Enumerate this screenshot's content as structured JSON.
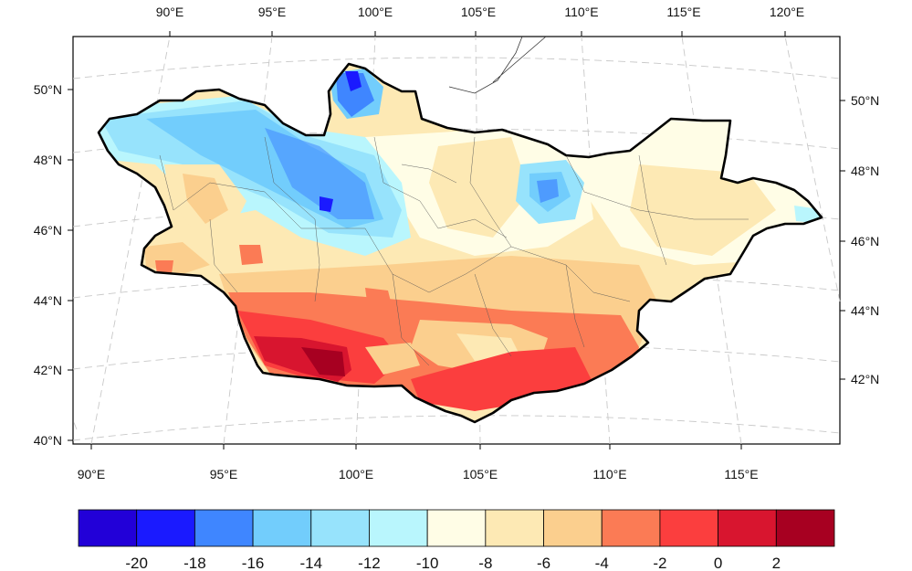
{
  "map": {
    "top_lon_labels": [
      "90°E",
      "95°E",
      "100°E",
      "105°E",
      "110°E",
      "115°E",
      "120°E"
    ],
    "bottom_lon_labels": [
      "90°E",
      "95°E",
      "100°E",
      "105°E",
      "110°E",
      "115°E"
    ],
    "left_lat_labels": [
      "50°N",
      "48°N",
      "46°N",
      "44°N",
      "42°N",
      "40°N"
    ],
    "right_lat_labels": [
      "50°N",
      "48°N",
      "46°N",
      "44°N",
      "42°N"
    ],
    "grid": "dashed graticule",
    "region_outline": "Mongolia (thick black border with province boundaries)"
  },
  "colorbar": {
    "tick_labels": [
      "-20",
      "-18",
      "-16",
      "-14",
      "-12",
      "-10",
      "-8",
      "-6",
      "-4",
      "-2",
      "0",
      "2"
    ],
    "colors": [
      "#2200d8",
      "#1a1aff",
      "#3f86ff",
      "#72cdfc",
      "#97e3fc",
      "#b9f6fd",
      "#fffde6",
      "#fde9b4",
      "#fbcf8e",
      "#fb7b55",
      "#fb3e3e",
      "#d8152f",
      "#a70021"
    ]
  }
}
